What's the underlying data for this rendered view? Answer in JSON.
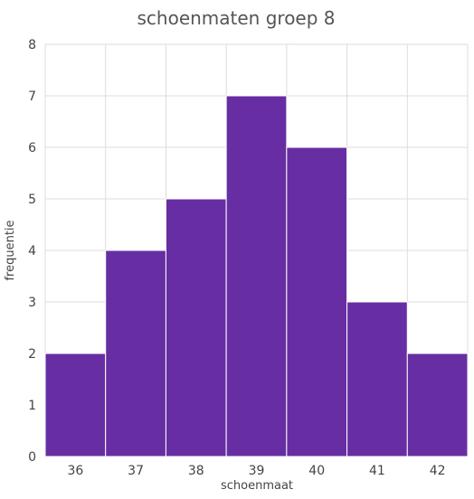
{
  "chart_data": {
    "type": "bar",
    "title": "schoenmaten groep 8",
    "xlabel": "schoenmaat",
    "ylabel": "frequentie",
    "categories": [
      "36",
      "37",
      "38",
      "39",
      "40",
      "41",
      "42"
    ],
    "values": [
      2,
      4,
      5,
      7,
      6,
      3,
      2
    ],
    "ylim": [
      0,
      8
    ],
    "yticks": [
      "0",
      "1",
      "2",
      "3",
      "4",
      "5",
      "6",
      "7",
      "8"
    ],
    "grid": true,
    "colors": {
      "bar": "#672EA3",
      "grid": "#DCDCDC",
      "text": "#444444"
    }
  }
}
